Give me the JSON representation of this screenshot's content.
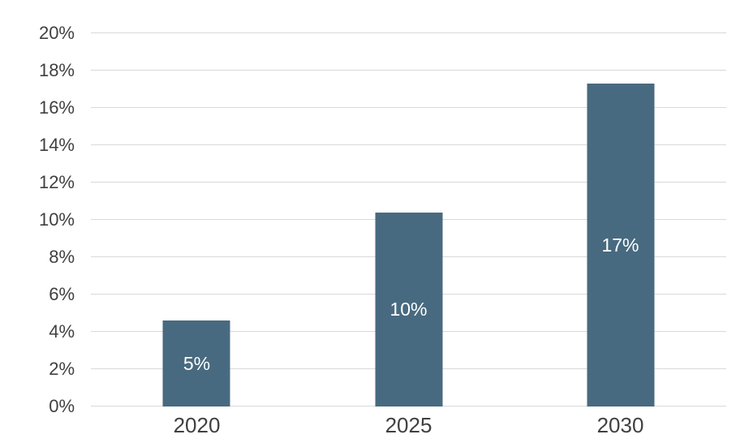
{
  "style": {
    "background_color": "#ffffff",
    "bar_color": "#486a80",
    "gridline_color": "#d9d9d9",
    "axis_text_color": "#404040",
    "bar_label_color": "#ffffff"
  },
  "chart_data": {
    "type": "bar",
    "title": "",
    "xlabel": "",
    "ylabel": "",
    "categories": [
      "2020",
      "2025",
      "2030"
    ],
    "values": [
      4.6,
      10.4,
      17.3
    ],
    "bar_labels": [
      "5%",
      "10%",
      "17%"
    ],
    "ylim": [
      0,
      20
    ],
    "ytick_step": 2,
    "ytick_labels": [
      "0%",
      "2%",
      "4%",
      "6%",
      "8%",
      "10%",
      "12%",
      "14%",
      "16%",
      "18%",
      "20%"
    ],
    "grid": true,
    "legend": false,
    "legend_position": "none"
  }
}
